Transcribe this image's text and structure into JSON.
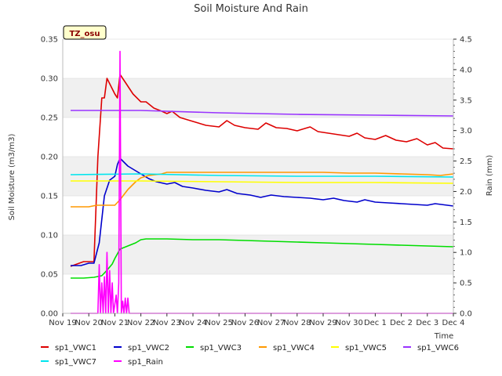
{
  "chart_data": {
    "type": "line",
    "title": "Soil Moisture And Rain",
    "site_tag": "TZ_osu",
    "xlabel": "Time",
    "ylabel_left": "Soil Moisture (m3/m3)",
    "ylabel_right": "Rain (mm)",
    "x_ticks": [
      "Nov 19",
      "Nov 20",
      "Nov 21",
      "Nov 22",
      "Nov 23",
      "Nov 24",
      "Nov 25",
      "Nov 26",
      "Nov 27",
      "Nov 28",
      "Nov 29",
      "Nov 30",
      "Dec 1",
      "Dec 2",
      "Dec 3",
      "Dec 4"
    ],
    "xlim": [
      0,
      15
    ],
    "ylim_left": [
      0,
      0.35
    ],
    "ylim_right": [
      0,
      4.5
    ],
    "y_ticks_left": [
      "0.00",
      "0.05",
      "0.10",
      "0.15",
      "0.20",
      "0.25",
      "0.30",
      "0.35"
    ],
    "y_ticks_right": [
      "0.0",
      "0.5",
      "1.0",
      "1.5",
      "2.0",
      "2.5",
      "3.0",
      "3.5",
      "4.0",
      "4.5"
    ],
    "grid": "horizontal bands",
    "legend_position": "bottom",
    "series": [
      {
        "name": "sp1_VWC1",
        "color": "#dd0000",
        "axis": "left",
        "points": [
          [
            0.3,
            0.06
          ],
          [
            0.8,
            0.066
          ],
          [
            1.2,
            0.066
          ],
          [
            1.35,
            0.2
          ],
          [
            1.5,
            0.275
          ],
          [
            1.6,
            0.275
          ],
          [
            1.7,
            0.3
          ],
          [
            1.85,
            0.29
          ],
          [
            2.0,
            0.28
          ],
          [
            2.1,
            0.275
          ],
          [
            2.2,
            0.305
          ],
          [
            2.4,
            0.295
          ],
          [
            2.7,
            0.28
          ],
          [
            3.0,
            0.27
          ],
          [
            3.2,
            0.27
          ],
          [
            3.5,
            0.262
          ],
          [
            3.8,
            0.258
          ],
          [
            4.0,
            0.255
          ],
          [
            4.2,
            0.258
          ],
          [
            4.5,
            0.25
          ],
          [
            5.0,
            0.245
          ],
          [
            5.5,
            0.24
          ],
          [
            6.0,
            0.238
          ],
          [
            6.3,
            0.246
          ],
          [
            6.6,
            0.24
          ],
          [
            7.0,
            0.237
          ],
          [
            7.5,
            0.235
          ],
          [
            7.8,
            0.243
          ],
          [
            8.2,
            0.237
          ],
          [
            8.6,
            0.236
          ],
          [
            9.0,
            0.233
          ],
          [
            9.5,
            0.238
          ],
          [
            9.8,
            0.232
          ],
          [
            10.2,
            0.23
          ],
          [
            10.6,
            0.228
          ],
          [
            11.0,
            0.226
          ],
          [
            11.3,
            0.23
          ],
          [
            11.6,
            0.224
          ],
          [
            12.0,
            0.222
          ],
          [
            12.4,
            0.227
          ],
          [
            12.8,
            0.221
          ],
          [
            13.2,
            0.219
          ],
          [
            13.6,
            0.223
          ],
          [
            14.0,
            0.215
          ],
          [
            14.3,
            0.218
          ],
          [
            14.6,
            0.211
          ],
          [
            15.0,
            0.21
          ]
        ]
      },
      {
        "name": "sp1_VWC2",
        "color": "#0000cc",
        "axis": "left",
        "points": [
          [
            0.3,
            0.061
          ],
          [
            0.7,
            0.061
          ],
          [
            1.0,
            0.064
          ],
          [
            1.2,
            0.064
          ],
          [
            1.4,
            0.09
          ],
          [
            1.6,
            0.15
          ],
          [
            1.8,
            0.17
          ],
          [
            2.0,
            0.175
          ],
          [
            2.1,
            0.19
          ],
          [
            2.2,
            0.198
          ],
          [
            2.5,
            0.188
          ],
          [
            3.0,
            0.178
          ],
          [
            3.3,
            0.172
          ],
          [
            3.6,
            0.168
          ],
          [
            4.0,
            0.165
          ],
          [
            4.3,
            0.167
          ],
          [
            4.6,
            0.162
          ],
          [
            5.0,
            0.16
          ],
          [
            5.5,
            0.157
          ],
          [
            6.0,
            0.155
          ],
          [
            6.3,
            0.158
          ],
          [
            6.7,
            0.153
          ],
          [
            7.2,
            0.151
          ],
          [
            7.6,
            0.148
          ],
          [
            8.0,
            0.151
          ],
          [
            8.5,
            0.149
          ],
          [
            9.0,
            0.148
          ],
          [
            9.5,
            0.147
          ],
          [
            10.0,
            0.145
          ],
          [
            10.4,
            0.147
          ],
          [
            10.8,
            0.144
          ],
          [
            11.3,
            0.142
          ],
          [
            11.6,
            0.145
          ],
          [
            12.0,
            0.142
          ],
          [
            12.5,
            0.141
          ],
          [
            13.0,
            0.14
          ],
          [
            13.5,
            0.139
          ],
          [
            14.0,
            0.138
          ],
          [
            14.3,
            0.14
          ],
          [
            15.0,
            0.137
          ]
        ]
      },
      {
        "name": "sp1_VWC3",
        "color": "#00dd00",
        "axis": "left",
        "points": [
          [
            0.3,
            0.045
          ],
          [
            0.8,
            0.045
          ],
          [
            1.2,
            0.046
          ],
          [
            1.5,
            0.048
          ],
          [
            1.7,
            0.055
          ],
          [
            1.9,
            0.063
          ],
          [
            2.0,
            0.07
          ],
          [
            2.2,
            0.082
          ],
          [
            2.5,
            0.086
          ],
          [
            2.8,
            0.09
          ],
          [
            3.0,
            0.094
          ],
          [
            3.2,
            0.095
          ],
          [
            4.0,
            0.095
          ],
          [
            5.0,
            0.094
          ],
          [
            6.0,
            0.094
          ],
          [
            7.0,
            0.093
          ],
          [
            8.0,
            0.092
          ],
          [
            9.0,
            0.091
          ],
          [
            10.0,
            0.09
          ],
          [
            11.0,
            0.089
          ],
          [
            12.0,
            0.088
          ],
          [
            13.0,
            0.087
          ],
          [
            14.0,
            0.086
          ],
          [
            15.0,
            0.085
          ]
        ]
      },
      {
        "name": "sp1_VWC4",
        "color": "#ff9900",
        "axis": "left",
        "points": [
          [
            0.3,
            0.136
          ],
          [
            1.0,
            0.136
          ],
          [
            1.3,
            0.138
          ],
          [
            1.6,
            0.138
          ],
          [
            2.0,
            0.138
          ],
          [
            2.2,
            0.145
          ],
          [
            2.5,
            0.158
          ],
          [
            2.8,
            0.168
          ],
          [
            3.0,
            0.173
          ],
          [
            3.3,
            0.176
          ],
          [
            3.8,
            0.178
          ],
          [
            4.0,
            0.18
          ],
          [
            5.0,
            0.18
          ],
          [
            6.0,
            0.18
          ],
          [
            7.0,
            0.18
          ],
          [
            8.0,
            0.18
          ],
          [
            9.0,
            0.18
          ],
          [
            10.0,
            0.18
          ],
          [
            11.0,
            0.179
          ],
          [
            12.0,
            0.179
          ],
          [
            13.0,
            0.178
          ],
          [
            14.0,
            0.177
          ],
          [
            14.5,
            0.176
          ],
          [
            15.0,
            0.178
          ]
        ]
      },
      {
        "name": "sp1_VWC5",
        "color": "#ffff00",
        "axis": "left",
        "points": [
          [
            0.3,
            0.169
          ],
          [
            3.0,
            0.169
          ],
          [
            6.0,
            0.168
          ],
          [
            9.0,
            0.167
          ],
          [
            12.0,
            0.167
          ],
          [
            15.0,
            0.166
          ]
        ]
      },
      {
        "name": "sp1_VWC6",
        "color": "#9933ff",
        "axis": "left",
        "points": [
          [
            0.3,
            0.259
          ],
          [
            3.0,
            0.259
          ],
          [
            6.0,
            0.256
          ],
          [
            9.0,
            0.254
          ],
          [
            12.0,
            0.253
          ],
          [
            15.0,
            0.252
          ]
        ]
      },
      {
        "name": "sp1_VWC7",
        "color": "#00e5ee",
        "axis": "left",
        "points": [
          [
            0.3,
            0.177
          ],
          [
            3.0,
            0.178
          ],
          [
            6.0,
            0.176
          ],
          [
            9.0,
            0.175
          ],
          [
            12.0,
            0.175
          ],
          [
            15.0,
            0.174
          ]
        ]
      },
      {
        "name": "sp1_Rain",
        "color": "#ff00ff",
        "axis": "right",
        "points": [
          [
            0.3,
            0
          ],
          [
            1.35,
            0
          ],
          [
            1.4,
            0.8
          ],
          [
            1.45,
            0
          ],
          [
            1.5,
            0.5
          ],
          [
            1.55,
            0
          ],
          [
            1.6,
            0.6
          ],
          [
            1.65,
            0
          ],
          [
            1.7,
            1.0
          ],
          [
            1.75,
            0
          ],
          [
            1.8,
            0.7
          ],
          [
            1.85,
            0
          ],
          [
            1.9,
            0.5
          ],
          [
            1.95,
            0
          ],
          [
            2.05,
            0.3
          ],
          [
            2.1,
            0
          ],
          [
            2.15,
            0.5
          ],
          [
            2.2,
            4.3
          ],
          [
            2.25,
            0
          ],
          [
            2.3,
            0.2
          ],
          [
            2.35,
            0
          ],
          [
            2.4,
            0.25
          ],
          [
            2.45,
            0
          ],
          [
            2.5,
            0.25
          ],
          [
            2.55,
            0
          ],
          [
            15.0,
            0
          ]
        ]
      }
    ]
  }
}
